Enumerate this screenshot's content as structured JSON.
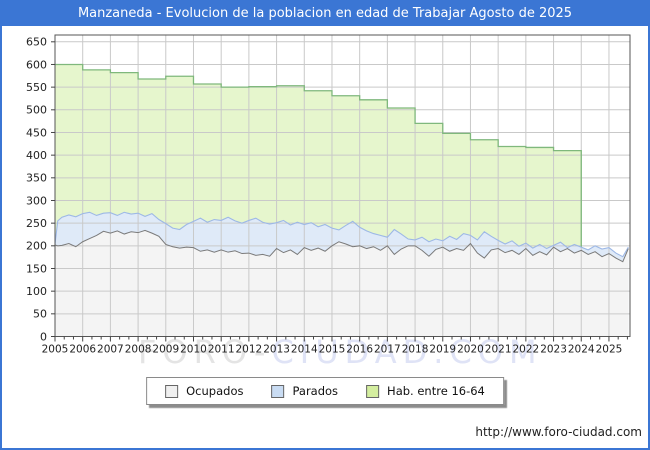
{
  "header": {
    "title": "Manzaneda - Evolucion de la poblacion en edad de Trabajar Agosto de 2025"
  },
  "footer": {
    "url": "http://www.foro-ciudad.com"
  },
  "watermark": {
    "part1": "FORO-",
    "part2": "CIUDAD.COM"
  },
  "colors": {
    "header_blue": "#3b76d4",
    "frame": "#555555",
    "grid": "#c9c9c9",
    "tick_text": "#222222",
    "hab_fill": "#e6f6cd",
    "hab_line": "#7fb87c",
    "parados_fill": "#dfeaf8",
    "parados_line": "#9db8e6",
    "ocupados_fill": "#f4f4f4",
    "ocupados_line": "#7a7a7a",
    "swatch_ocupados": "#f0f0f0",
    "swatch_parados": "#c9dcf3",
    "swatch_hab": "#d4ee9f"
  },
  "chart_data": {
    "type": "area",
    "title": "Manzaneda - Evolucion de la poblacion en edad de Trabajar Agosto de 2025",
    "xlabel": "",
    "ylabel": "",
    "xlim": [
      2005,
      2025.76
    ],
    "ylim": [
      0,
      665
    ],
    "grid": true,
    "legend_position": "bottom-center",
    "yticks": [
      0,
      50,
      100,
      150,
      200,
      250,
      300,
      350,
      400,
      450,
      500,
      550,
      600,
      650
    ],
    "year_labels": [
      "2005",
      "2006",
      "2007",
      "2008",
      "2009",
      "2010",
      "2011",
      "2012",
      "2013",
      "2014",
      "2015",
      "2016",
      "2017",
      "2018",
      "2019",
      "2020",
      "2021",
      "2022",
      "2023",
      "2024",
      "2025"
    ],
    "legend": [
      {
        "label": "Ocupados"
      },
      {
        "label": "Parados"
      },
      {
        "label": "Hab. entre 16-64"
      }
    ],
    "hab_16_64": {
      "years": [
        2005,
        2006,
        2007,
        2008,
        2009,
        2010,
        2011,
        2012,
        2013,
        2014,
        2015,
        2016,
        2017,
        2018,
        2019,
        2020,
        2021,
        2022,
        2023
      ],
      "values": [
        600,
        588,
        582,
        568,
        574,
        557,
        550,
        551,
        553,
        542,
        531,
        522,
        504,
        470,
        448,
        434,
        419,
        417,
        410
      ],
      "series_end_x": 2024.0,
      "end_drop_to": 197
    },
    "monthly_x": [
      2005.0,
      2005.1,
      2005.25,
      2005.5,
      2005.75,
      2006.0,
      2006.25,
      2006.5,
      2006.75,
      2007.0,
      2007.25,
      2007.5,
      2007.75,
      2008.0,
      2008.25,
      2008.5,
      2008.75,
      2009.0,
      2009.25,
      2009.5,
      2009.75,
      2010.0,
      2010.25,
      2010.5,
      2010.75,
      2011.0,
      2011.25,
      2011.5,
      2011.75,
      2012.0,
      2012.25,
      2012.5,
      2012.75,
      2013.0,
      2013.25,
      2013.5,
      2013.75,
      2014.0,
      2014.25,
      2014.5,
      2014.75,
      2015.0,
      2015.25,
      2015.5,
      2015.75,
      2016.0,
      2016.25,
      2016.5,
      2016.75,
      2017.0,
      2017.25,
      2017.5,
      2017.75,
      2018.0,
      2018.25,
      2018.5,
      2018.75,
      2019.0,
      2019.25,
      2019.5,
      2019.75,
      2020.0,
      2020.25,
      2020.5,
      2020.75,
      2021.0,
      2021.25,
      2021.5,
      2021.75,
      2022.0,
      2022.25,
      2022.5,
      2022.75,
      2023.0,
      2023.25,
      2023.5,
      2023.75,
      2024.0,
      2024.25,
      2024.5,
      2024.75,
      2025.0,
      2025.25,
      2025.5,
      2025.7
    ],
    "series": [
      {
        "name": "Ocupados",
        "values": [
          202,
          200,
          201,
          205,
          198,
          209,
          216,
          223,
          232,
          228,
          233,
          226,
          231,
          229,
          234,
          228,
          221,
          203,
          198,
          195,
          197,
          196,
          188,
          191,
          186,
          191,
          186,
          189,
          183,
          184,
          179,
          181,
          177,
          194,
          185,
          191,
          181,
          196,
          190,
          195,
          188,
          200,
          209,
          204,
          198,
          200,
          194,
          198,
          190,
          200,
          181,
          193,
          200,
          200,
          190,
          177,
          192,
          197,
          188,
          194,
          190,
          205,
          184,
          173,
          191,
          194,
          185,
          190,
          181,
          194,
          179,
          187,
          180,
          197,
          187,
          194,
          184,
          190,
          181,
          187,
          176,
          183,
          173,
          165,
          194
        ]
      },
      {
        "name": "Ocupados+Parados (borde superior banda Parados)",
        "values": [
          204,
          255,
          263,
          268,
          264,
          271,
          274,
          267,
          272,
          273,
          267,
          274,
          270,
          272,
          265,
          271,
          258,
          249,
          239,
          236,
          247,
          254,
          261,
          252,
          258,
          256,
          263,
          255,
          250,
          256,
          261,
          252,
          248,
          251,
          256,
          246,
          252,
          247,
          251,
          242,
          247,
          239,
          235,
          245,
          254,
          241,
          233,
          227,
          223,
          219,
          236,
          226,
          215,
          213,
          219,
          209,
          215,
          211,
          221,
          214,
          227,
          223,
          213,
          231,
          221,
          212,
          204,
          211,
          199,
          206,
          195,
          203,
          194,
          201,
          208,
          196,
          203,
          197,
          191,
          200,
          193,
          196,
          184,
          176,
          197
        ]
      }
    ]
  }
}
